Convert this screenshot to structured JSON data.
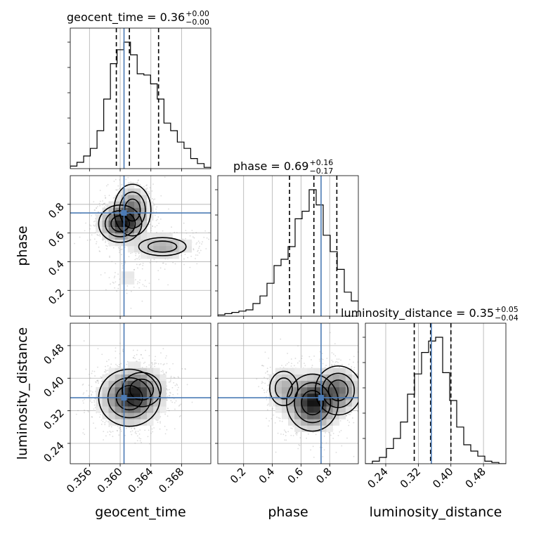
{
  "chart_data": {
    "type": "corner",
    "params": [
      "geocent_time",
      "phase",
      "luminosity_distance"
    ],
    "axis_labels": {
      "geocent_time": "geocent_time",
      "phase": "phase",
      "luminosity_distance": "luminosity_distance"
    },
    "ranges": {
      "geocent_time": [
        0.3535,
        0.3718
      ],
      "phase": [
        0.02,
        1.0
      ],
      "luminosity_distance": [
        0.19,
        0.535
      ]
    },
    "ticks": {
      "geocent_time": [
        "0.356",
        "0.360",
        "0.364",
        "0.368"
      ],
      "phase": [
        "0.2",
        "0.4",
        "0.6",
        "0.8"
      ],
      "luminosity_distance": [
        "0.24",
        "0.32",
        "0.40",
        "0.48"
      ]
    },
    "tick_values": {
      "geocent_time": [
        0.356,
        0.36,
        0.364,
        0.368
      ],
      "phase": [
        0.2,
        0.4,
        0.6,
        0.8
      ],
      "luminosity_distance": [
        0.24,
        0.32,
        0.4,
        0.48
      ]
    },
    "titles": [
      {
        "param": "geocent_time",
        "label": "geocent_time",
        "median": "0.36",
        "plus": "+0.00",
        "minus": "−0.00"
      },
      {
        "param": "phase",
        "label": "phase",
        "median": "0.69",
        "plus": "+0.16",
        "minus": "−0.17"
      },
      {
        "param": "luminosity_distance",
        "label": "luminosity_distance",
        "median": "0.35",
        "plus": "+0.05",
        "minus": "−0.04"
      }
    ],
    "quantiles": {
      "geocent_time": [
        0.3595,
        0.3612,
        0.365
      ],
      "phase": [
        0.52,
        0.69,
        0.85
      ],
      "luminosity_distance": [
        0.31,
        0.35,
        0.4
      ]
    },
    "truths": {
      "geocent_time": 0.3605,
      "phase": 0.74,
      "luminosity_distance": 0.352
    },
    "histograms": {
      "geocent_time": {
        "edges_range": [
          0.3535,
          0.3718
        ],
        "counts": [
          0.02,
          0.05,
          0.1,
          0.16,
          0.3,
          0.55,
          0.83,
          0.94,
          1.0,
          0.9,
          0.75,
          0.74,
          0.67,
          0.55,
          0.36,
          0.3,
          0.21,
          0.16,
          0.08,
          0.04,
          0.01
        ]
      },
      "phase": {
        "edges_range": [
          0.02,
          1.0
        ],
        "counts": [
          0.01,
          0.02,
          0.03,
          0.04,
          0.05,
          0.1,
          0.16,
          0.26,
          0.4,
          0.45,
          0.55,
          0.77,
          0.83,
          1.0,
          0.88,
          0.64,
          0.51,
          0.37,
          0.19,
          0.12
        ]
      },
      "luminosity_distance": {
        "edges_range": [
          0.19,
          0.535
        ],
        "counts": [
          0.0,
          0.02,
          0.05,
          0.12,
          0.2,
          0.33,
          0.55,
          0.71,
          0.88,
          0.97,
          1.0,
          0.72,
          0.5,
          0.29,
          0.15,
          0.1,
          0.06,
          0.02,
          0.01,
          0.0
        ]
      }
    },
    "density_2d": [
      {
        "x": "geocent_time",
        "y": "phase",
        "modes": [
          {
            "cx": 0.36,
            "cy": 0.665,
            "sx": 0.0014,
            "sy": 0.065,
            "w": 1.0
          },
          {
            "cx": 0.3616,
            "cy": 0.76,
            "sx": 0.0012,
            "sy": 0.09,
            "w": 0.7
          },
          {
            "cx": 0.3655,
            "cy": 0.505,
            "sx": 0.0022,
            "sy": 0.045,
            "w": 0.45
          },
          {
            "cx": 0.361,
            "cy": 0.3,
            "sx": 0.0016,
            "sy": 0.07,
            "w": 0.12
          }
        ]
      },
      {
        "x": "geocent_time",
        "y": "luminosity_distance",
        "modes": [
          {
            "cx": 0.3612,
            "cy": 0.352,
            "sx": 0.002,
            "sy": 0.035,
            "w": 1.0
          },
          {
            "cx": 0.3628,
            "cy": 0.372,
            "sx": 0.0018,
            "sy": 0.03,
            "w": 0.45
          }
        ]
      },
      {
        "x": "phase",
        "y": "luminosity_distance",
        "modes": [
          {
            "cx": 0.68,
            "cy": 0.34,
            "sx": 0.09,
            "sy": 0.035,
            "w": 1.0
          },
          {
            "cx": 0.86,
            "cy": 0.37,
            "sx": 0.08,
            "sy": 0.03,
            "w": 0.6
          },
          {
            "cx": 0.48,
            "cy": 0.375,
            "sx": 0.07,
            "sy": 0.03,
            "w": 0.3
          }
        ]
      }
    ],
    "colors": {
      "truth": "#4c7bb5",
      "quantile": "#000000",
      "hist": "#000000",
      "grid": "#b0b0b0",
      "scatter": "#9a9a9a",
      "density": "#000000"
    },
    "grid": true
  }
}
